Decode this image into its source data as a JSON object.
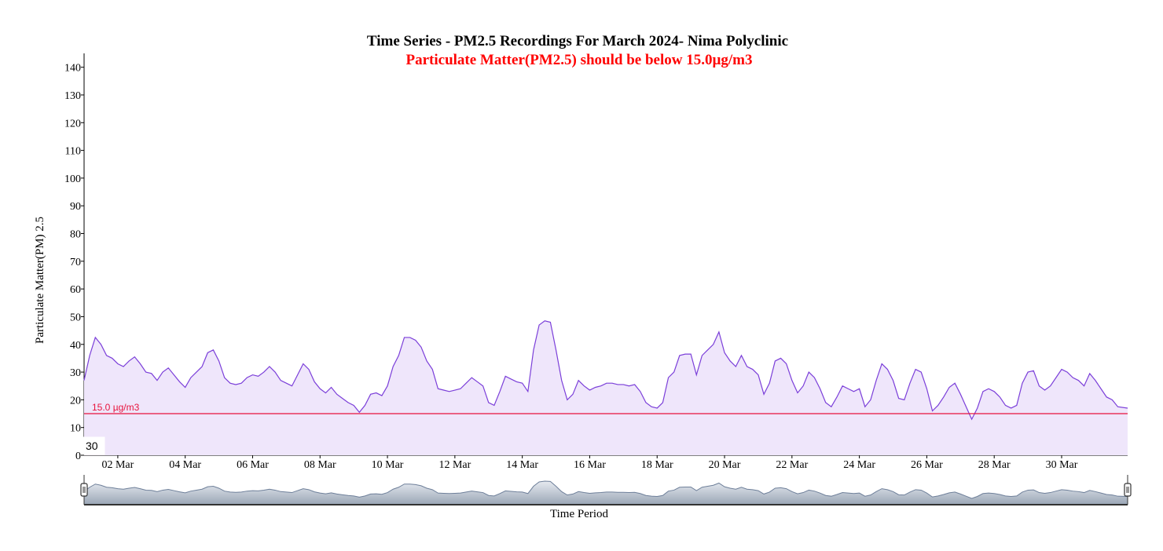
{
  "chart_data": {
    "type": "area",
    "title": "Time Series - PM2.5 Recordings For March 2024- Nima Polyclinic",
    "subtitle": "Particulate Matter(PM2.5) should be below 15.0µg/m3",
    "xlabel": "Time Period",
    "ylabel": "Particulate Matter(PM) 2.5",
    "ylim": [
      0,
      145
    ],
    "yticks": [
      0,
      10,
      20,
      30,
      40,
      50,
      60,
      70,
      80,
      90,
      100,
      110,
      120,
      130,
      140
    ],
    "x_range": [
      "2024-03-01T00:00",
      "2024-03-31T23:00"
    ],
    "x_tick_labels": [
      "02 Mar",
      "04 Mar",
      "06 Mar",
      "08 Mar",
      "10 Mar",
      "12 Mar",
      "14 Mar",
      "16 Mar",
      "18 Mar",
      "20 Mar",
      "22 Mar",
      "24 Mar",
      "26 Mar",
      "28 Mar",
      "30 Mar"
    ],
    "x_tick_dates": [
      "2024-03-02",
      "2024-03-04",
      "2024-03-06",
      "2024-03-08",
      "2024-03-10",
      "2024-03-12",
      "2024-03-14",
      "2024-03-16",
      "2024-03-18",
      "2024-03-20",
      "2024-03-22",
      "2024-03-24",
      "2024-03-26",
      "2024-03-28",
      "2024-03-30"
    ],
    "threshold": {
      "value": 15.0,
      "label": "15.0 µg/m3",
      "color": "#e8123c"
    },
    "corner_label": "30",
    "grid": false,
    "series": [
      {
        "points": [
          [
            "2024-03-01T00:00",
            27
          ],
          [
            "2024-03-01T04:00",
            36
          ],
          [
            "2024-03-01T08:00",
            42.5
          ],
          [
            "2024-03-01T12:00",
            40
          ],
          [
            "2024-03-01T16:00",
            36
          ],
          [
            "2024-03-01T20:00",
            35
          ],
          [
            "2024-03-02T00:00",
            33
          ],
          [
            "2024-03-02T04:00",
            32
          ],
          [
            "2024-03-02T08:00",
            34
          ],
          [
            "2024-03-02T12:00",
            35.5
          ],
          [
            "2024-03-02T16:00",
            33
          ],
          [
            "2024-03-02T20:00",
            30
          ],
          [
            "2024-03-03T00:00",
            29.5
          ],
          [
            "2024-03-03T04:00",
            27
          ],
          [
            "2024-03-03T08:00",
            30
          ],
          [
            "2024-03-03T12:00",
            31.5
          ],
          [
            "2024-03-03T16:00",
            29
          ],
          [
            "2024-03-03T20:00",
            26.5
          ],
          [
            "2024-03-04T00:00",
            24.5
          ],
          [
            "2024-03-04T04:00",
            28
          ],
          [
            "2024-03-04T08:00",
            30
          ],
          [
            "2024-03-04T12:00",
            32
          ],
          [
            "2024-03-04T16:00",
            37
          ],
          [
            "2024-03-04T20:00",
            38
          ],
          [
            "2024-03-05T00:00",
            34
          ],
          [
            "2024-03-05T04:00",
            28
          ],
          [
            "2024-03-05T08:00",
            26
          ],
          [
            "2024-03-05T12:00",
            25.5
          ],
          [
            "2024-03-05T16:00",
            26
          ],
          [
            "2024-03-05T20:00",
            28
          ],
          [
            "2024-03-06T00:00",
            29
          ],
          [
            "2024-03-06T04:00",
            28.5
          ],
          [
            "2024-03-06T08:00",
            30
          ],
          [
            "2024-03-06T12:00",
            32
          ],
          [
            "2024-03-06T16:00",
            30
          ],
          [
            "2024-03-06T20:00",
            27
          ],
          [
            "2024-03-07T00:00",
            26
          ],
          [
            "2024-03-07T04:00",
            25
          ],
          [
            "2024-03-07T08:00",
            29
          ],
          [
            "2024-03-07T12:00",
            33
          ],
          [
            "2024-03-07T16:00",
            31
          ],
          [
            "2024-03-07T20:00",
            26.5
          ],
          [
            "2024-03-08T00:00",
            24
          ],
          [
            "2024-03-08T04:00",
            22.5
          ],
          [
            "2024-03-08T08:00",
            24.5
          ],
          [
            "2024-03-08T12:00",
            22
          ],
          [
            "2024-03-08T16:00",
            20.5
          ],
          [
            "2024-03-08T20:00",
            19
          ],
          [
            "2024-03-09T00:00",
            18
          ],
          [
            "2024-03-09T04:00",
            15.5
          ],
          [
            "2024-03-09T08:00",
            18
          ],
          [
            "2024-03-09T12:00",
            22
          ],
          [
            "2024-03-09T16:00",
            22.5
          ],
          [
            "2024-03-09T20:00",
            21.5
          ],
          [
            "2024-03-10T00:00",
            25
          ],
          [
            "2024-03-10T04:00",
            32
          ],
          [
            "2024-03-10T08:00",
            36
          ],
          [
            "2024-03-10T12:00",
            42.5
          ],
          [
            "2024-03-10T16:00",
            42.5
          ],
          [
            "2024-03-10T20:00",
            41.5
          ],
          [
            "2024-03-11T00:00",
            39
          ],
          [
            "2024-03-11T04:00",
            34
          ],
          [
            "2024-03-11T08:00",
            31
          ],
          [
            "2024-03-11T12:00",
            24
          ],
          [
            "2024-03-11T16:00",
            23.5
          ],
          [
            "2024-03-11T20:00",
            23
          ],
          [
            "2024-03-12T00:00",
            23.5
          ],
          [
            "2024-03-12T04:00",
            24
          ],
          [
            "2024-03-12T08:00",
            26
          ],
          [
            "2024-03-12T12:00",
            28
          ],
          [
            "2024-03-12T16:00",
            26.5
          ],
          [
            "2024-03-12T20:00",
            25
          ],
          [
            "2024-03-13T00:00",
            19
          ],
          [
            "2024-03-13T04:00",
            18
          ],
          [
            "2024-03-13T08:00",
            23
          ],
          [
            "2024-03-13T12:00",
            28.5
          ],
          [
            "2024-03-13T16:00",
            27.5
          ],
          [
            "2024-03-13T20:00",
            26.5
          ],
          [
            "2024-03-14T00:00",
            26
          ],
          [
            "2024-03-14T04:00",
            23
          ],
          [
            "2024-03-14T08:00",
            38
          ],
          [
            "2024-03-14T12:00",
            47
          ],
          [
            "2024-03-14T16:00",
            48.5
          ],
          [
            "2024-03-14T20:00",
            48
          ],
          [
            "2024-03-15T00:00",
            38
          ],
          [
            "2024-03-15T04:00",
            27
          ],
          [
            "2024-03-15T08:00",
            20
          ],
          [
            "2024-03-15T12:00",
            22
          ],
          [
            "2024-03-15T16:00",
            27
          ],
          [
            "2024-03-15T20:00",
            25
          ],
          [
            "2024-03-16T00:00",
            23.5
          ],
          [
            "2024-03-16T04:00",
            24.5
          ],
          [
            "2024-03-16T08:00",
            25
          ],
          [
            "2024-03-16T12:00",
            26
          ],
          [
            "2024-03-16T16:00",
            26
          ],
          [
            "2024-03-16T20:00",
            25.5
          ],
          [
            "2024-03-17T00:00",
            25.5
          ],
          [
            "2024-03-17T04:00",
            25
          ],
          [
            "2024-03-17T08:00",
            25.5
          ],
          [
            "2024-03-17T12:00",
            23
          ],
          [
            "2024-03-17T16:00",
            19
          ],
          [
            "2024-03-17T20:00",
            17.5
          ],
          [
            "2024-03-18T00:00",
            17
          ],
          [
            "2024-03-18T04:00",
            19
          ],
          [
            "2024-03-18T08:00",
            28
          ],
          [
            "2024-03-18T12:00",
            30
          ],
          [
            "2024-03-18T16:00",
            36
          ],
          [
            "2024-03-18T20:00",
            36.5
          ],
          [
            "2024-03-19T00:00",
            36.5
          ],
          [
            "2024-03-19T04:00",
            29
          ],
          [
            "2024-03-19T08:00",
            36
          ],
          [
            "2024-03-19T12:00",
            38
          ],
          [
            "2024-03-19T16:00",
            40
          ],
          [
            "2024-03-19T20:00",
            44.5
          ],
          [
            "2024-03-20T00:00",
            37
          ],
          [
            "2024-03-20T04:00",
            34
          ],
          [
            "2024-03-20T08:00",
            32
          ],
          [
            "2024-03-20T12:00",
            36
          ],
          [
            "2024-03-20T16:00",
            32
          ],
          [
            "2024-03-20T20:00",
            31
          ],
          [
            "2024-03-21T00:00",
            29
          ],
          [
            "2024-03-21T04:00",
            22
          ],
          [
            "2024-03-21T08:00",
            26
          ],
          [
            "2024-03-21T12:00",
            34
          ],
          [
            "2024-03-21T16:00",
            35
          ],
          [
            "2024-03-21T20:00",
            33
          ],
          [
            "2024-03-22T00:00",
            27
          ],
          [
            "2024-03-22T04:00",
            22.5
          ],
          [
            "2024-03-22T08:00",
            25
          ],
          [
            "2024-03-22T12:00",
            30
          ],
          [
            "2024-03-22T16:00",
            28
          ],
          [
            "2024-03-22T20:00",
            24
          ],
          [
            "2024-03-23T00:00",
            19
          ],
          [
            "2024-03-23T04:00",
            17.5
          ],
          [
            "2024-03-23T08:00",
            21
          ],
          [
            "2024-03-23T12:00",
            25
          ],
          [
            "2024-03-23T16:00",
            24
          ],
          [
            "2024-03-23T20:00",
            23
          ],
          [
            "2024-03-24T00:00",
            24
          ],
          [
            "2024-03-24T04:00",
            17.5
          ],
          [
            "2024-03-24T08:00",
            20
          ],
          [
            "2024-03-24T12:00",
            27
          ],
          [
            "2024-03-24T16:00",
            33
          ],
          [
            "2024-03-24T20:00",
            31
          ],
          [
            "2024-03-25T00:00",
            27
          ],
          [
            "2024-03-25T04:00",
            20.5
          ],
          [
            "2024-03-25T08:00",
            20
          ],
          [
            "2024-03-25T12:00",
            26
          ],
          [
            "2024-03-25T16:00",
            31
          ],
          [
            "2024-03-25T20:00",
            30
          ],
          [
            "2024-03-26T00:00",
            24
          ],
          [
            "2024-03-26T04:00",
            16
          ],
          [
            "2024-03-26T08:00",
            18
          ],
          [
            "2024-03-26T12:00",
            21
          ],
          [
            "2024-03-26T16:00",
            24.5
          ],
          [
            "2024-03-26T20:00",
            26
          ],
          [
            "2024-03-27T00:00",
            22
          ],
          [
            "2024-03-27T04:00",
            17.5
          ],
          [
            "2024-03-27T08:00",
            13
          ],
          [
            "2024-03-27T12:00",
            17
          ],
          [
            "2024-03-27T16:00",
            23
          ],
          [
            "2024-03-27T20:00",
            24
          ],
          [
            "2024-03-28T00:00",
            23
          ],
          [
            "2024-03-28T04:00",
            21
          ],
          [
            "2024-03-28T08:00",
            18
          ],
          [
            "2024-03-28T12:00",
            17
          ],
          [
            "2024-03-28T16:00",
            18
          ],
          [
            "2024-03-28T20:00",
            26
          ],
          [
            "2024-03-29T00:00",
            30
          ],
          [
            "2024-03-29T04:00",
            30.5
          ],
          [
            "2024-03-29T08:00",
            25
          ],
          [
            "2024-03-29T12:00",
            23.5
          ],
          [
            "2024-03-29T16:00",
            25
          ],
          [
            "2024-03-29T20:00",
            28
          ],
          [
            "2024-03-30T00:00",
            31
          ],
          [
            "2024-03-30T04:00",
            30
          ],
          [
            "2024-03-30T08:00",
            28
          ],
          [
            "2024-03-30T12:00",
            27
          ],
          [
            "2024-03-30T16:00",
            25
          ],
          [
            "2024-03-30T20:00",
            29.5
          ],
          [
            "2024-03-31T00:00",
            27
          ],
          [
            "2024-03-31T04:00",
            24
          ],
          [
            "2024-03-31T08:00",
            21
          ],
          [
            "2024-03-31T12:00",
            20
          ],
          [
            "2024-03-31T16:00",
            17.5
          ],
          [
            "2024-03-31T23:00",
            17
          ]
        ]
      }
    ]
  },
  "colors": {
    "line": "#7b3fd9",
    "area_fill": "#efe6fb",
    "threshold": "#e8123c",
    "title": "#000000",
    "subtitle": "#ff0000",
    "navigator_fill": "#cfd6df",
    "navigator_stroke": "#6e7f99"
  }
}
